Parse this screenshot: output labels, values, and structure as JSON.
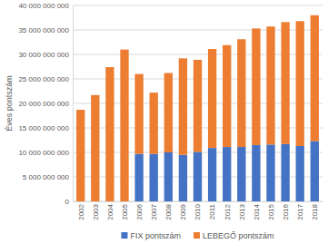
{
  "chart_data": {
    "type": "bar",
    "stacked": true,
    "grid": true,
    "legend": "bottom",
    "y_label": "Éves pontszám",
    "categories": [
      "2002",
      "2003",
      "2004",
      "2005",
      "2006",
      "2007",
      "2008",
      "2009",
      "2010",
      "2011",
      "2012",
      "2013",
      "2014",
      "2015",
      "2016",
      "2017",
      "2018"
    ],
    "series": [
      {
        "name": "FIX pontszám",
        "color": "#4472c4",
        "values": [
          null,
          null,
          null,
          null,
          9700000000,
          9700000000,
          10000000000,
          9500000000,
          10100000000,
          10900000000,
          11100000000,
          11100000000,
          11500000000,
          11600000000,
          11700000000,
          11300000000,
          12300000000
        ]
      },
      {
        "name": "LEBEGŐ pontszám",
        "color": "#ed7d31",
        "values": [
          18700000000,
          21700000000,
          27400000000,
          31000000000,
          16300000000,
          12500000000,
          16200000000,
          19700000000,
          18800000000,
          20200000000,
          20800000000,
          22000000000,
          23800000000,
          24100000000,
          24900000000,
          25500000000,
          25700000000
        ]
      }
    ],
    "ylim": [
      0,
      40000000000
    ],
    "yticks": [
      0,
      {
        "value": 5000000000,
        "label": "5 000 000 000"
      },
      {
        "value": 10000000000,
        "label": "10 000 000 000"
      },
      {
        "value": 15000000000,
        "label": "15 000 000 000"
      },
      {
        "value": 20000000000,
        "label": "20 000 000 000"
      },
      {
        "value": 25000000000,
        "label": "25 000 000 000"
      },
      {
        "value": 30000000000,
        "label": "30 000 000 000"
      },
      {
        "value": 35000000000,
        "label": "35 000 000 000"
      },
      {
        "value": 40000000000,
        "label": "40 000 000 000"
      }
    ]
  }
}
